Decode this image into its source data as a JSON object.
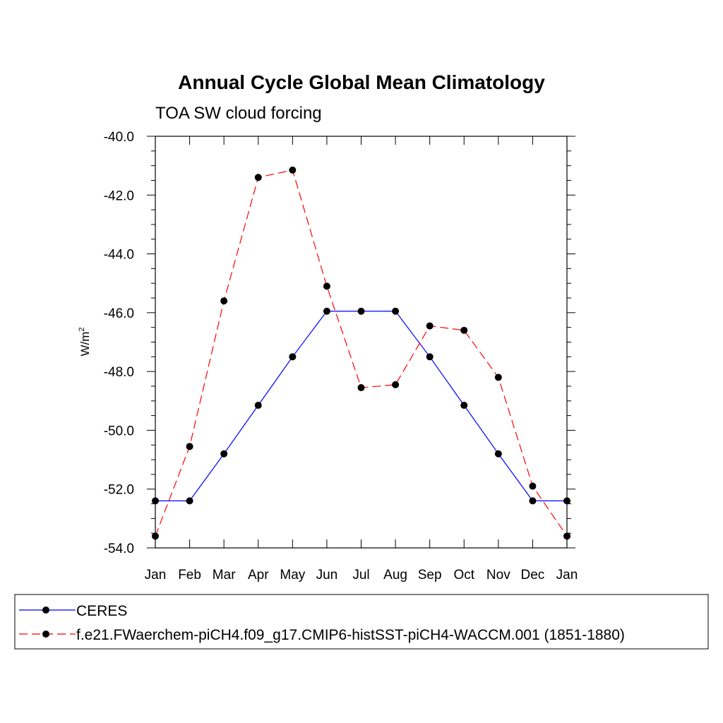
{
  "chart_data": {
    "type": "line",
    "title": "Annual Cycle Global Mean Climatology",
    "subtitle": "TOA SW cloud forcing",
    "ylabel_base": "W/m",
    "ylabel_sup": "2",
    "xlabel": "",
    "ylim": [
      -54.0,
      -40.0
    ],
    "yticks": [
      -40.0,
      -42.0,
      -44.0,
      -46.0,
      -48.0,
      -50.0,
      -52.0,
      -54.0
    ],
    "ytick_labels": [
      "-40.0",
      "-42.0",
      "-44.0",
      "-46.0",
      "-48.0",
      "-50.0",
      "-52.0",
      "-54.0"
    ],
    "categories": [
      "Jan",
      "Feb",
      "Mar",
      "Apr",
      "May",
      "Jun",
      "Jul",
      "Aug",
      "Sep",
      "Oct",
      "Nov",
      "Dec",
      "Jan"
    ],
    "series": [
      {
        "name": "CERES",
        "color": "#0000ff",
        "dash": "solid",
        "values": [
          -52.4,
          -52.4,
          -50.8,
          -49.15,
          -47.5,
          -45.95,
          -45.95,
          -45.95,
          -47.5,
          -49.15,
          -50.8,
          -52.4,
          -52.4
        ]
      },
      {
        "name": "f.e21.FWaerchem-piCH4.f09_g17.CMIP6-histSST-piCH4-WACCM.001 (1851-1880)",
        "color": "#ff0000",
        "dash": "dashed",
        "values": [
          -53.6,
          -50.55,
          -45.6,
          -41.4,
          -41.15,
          -45.1,
          -48.55,
          -48.45,
          -46.45,
          -46.6,
          -48.2,
          -51.9,
          -53.6
        ]
      }
    ],
    "legend_position": "bottom"
  }
}
